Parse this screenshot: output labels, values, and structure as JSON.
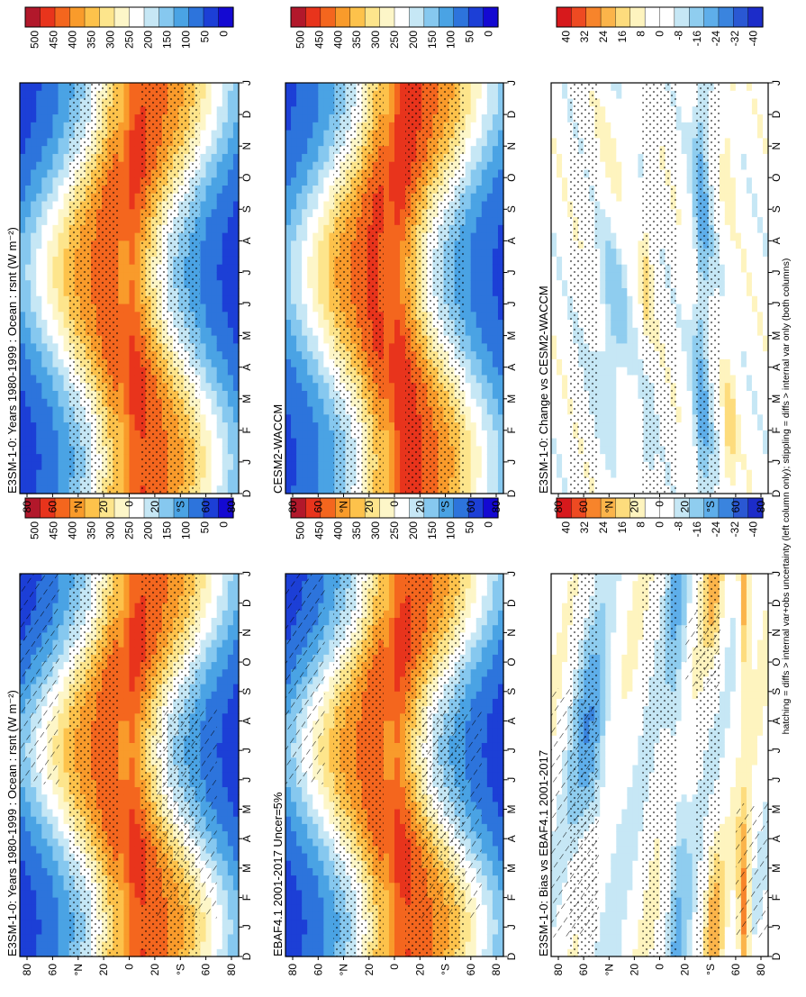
{
  "figure": {
    "footer": "hatching = diffs > internal var+obs uncertainty (left column only); stippling = diffs > internal var only (both columns)"
  },
  "chart_data": [
    {
      "id": "model-left",
      "type": "heatmap",
      "title": "E3SM-1-0: Years 1980-1999 : Ocean : rsnt (W m⁻²)",
      "x_ticks": [
        "D",
        "J",
        "F",
        "M",
        "A",
        "M",
        "J",
        "J",
        "A",
        "S",
        "O",
        "N",
        "D",
        "J"
      ],
      "y_ticks": [
        "80",
        "60",
        "°N",
        "20",
        "0",
        "20",
        "°S",
        "60",
        "80"
      ],
      "colorbar": [
        "500",
        "450",
        "400",
        "350",
        "300",
        "250",
        "200",
        "150",
        "100",
        "50",
        "0"
      ],
      "zlim": [
        0,
        500
      ],
      "hatching": true,
      "stippling": true
    },
    {
      "id": "model-right",
      "type": "heatmap",
      "title": "E3SM-1-0: Years 1980-1999 : Ocean : rsnt (W m⁻²)",
      "x_ticks": [
        "D",
        "J",
        "F",
        "M",
        "A",
        "M",
        "J",
        "J",
        "A",
        "S",
        "O",
        "N",
        "D",
        "J"
      ],
      "y_ticks": [
        "80",
        "60",
        "°N",
        "20",
        "0",
        "20",
        "°S",
        "60",
        "80"
      ],
      "colorbar": [
        "500",
        "450",
        "400",
        "350",
        "300",
        "250",
        "200",
        "150",
        "100",
        "50",
        "0"
      ],
      "zlim": [
        0,
        500
      ],
      "hatching": false,
      "stippling": true
    },
    {
      "id": "obs",
      "type": "heatmap",
      "title": "EBAF4.1 2001-2017 Uncer=5%",
      "x_ticks": [
        "D",
        "J",
        "F",
        "M",
        "A",
        "M",
        "J",
        "J",
        "A",
        "S",
        "O",
        "N",
        "D",
        "J"
      ],
      "y_ticks": [
        "80",
        "60",
        "°N",
        "20",
        "0",
        "20",
        "°S",
        "60",
        "80"
      ],
      "colorbar": [
        "500",
        "450",
        "400",
        "350",
        "300",
        "250",
        "200",
        "150",
        "100",
        "50",
        "0"
      ],
      "zlim": [
        0,
        500
      ],
      "hatching": true,
      "stippling": true
    },
    {
      "id": "cesm",
      "type": "heatmap",
      "title": "CESM2-WACCM",
      "x_ticks": [
        "D",
        "J",
        "F",
        "M",
        "A",
        "M",
        "J",
        "J",
        "A",
        "S",
        "O",
        "N",
        "D",
        "J"
      ],
      "y_ticks": [
        "80",
        "60",
        "°N",
        "20",
        "0",
        "20",
        "°S",
        "60",
        "80"
      ],
      "colorbar": [
        "500",
        "450",
        "400",
        "350",
        "300",
        "250",
        "200",
        "150",
        "100",
        "50",
        "0"
      ],
      "zlim": [
        0,
        500
      ],
      "hatching": false,
      "stippling": true
    },
    {
      "id": "bias",
      "type": "heatmap",
      "title": "E3SM-1-0: Bias vs EBAF4.1 2001-2017",
      "x_ticks": [
        "D",
        "J",
        "F",
        "M",
        "A",
        "M",
        "J",
        "J",
        "A",
        "S",
        "O",
        "N",
        "D",
        "J"
      ],
      "y_ticks": [
        "80",
        "60",
        "°N",
        "20",
        "0",
        "20",
        "°S",
        "60",
        "80"
      ],
      "colorbar": [
        "40",
        "32",
        "24",
        "16",
        "8",
        "0",
        "-8",
        "-16",
        "-24",
        "-32",
        "-40"
      ],
      "zlim": [
        -40,
        40
      ],
      "hatching": true,
      "stippling": true
    },
    {
      "id": "change",
      "type": "heatmap",
      "title": "E3SM-1-0: Change vs CESM2-WACCM",
      "x_ticks": [
        "D",
        "J",
        "F",
        "M",
        "A",
        "M",
        "J",
        "J",
        "A",
        "S",
        "O",
        "N",
        "D",
        "J"
      ],
      "y_ticks": [
        "80",
        "60",
        "°N",
        "20",
        "0",
        "20",
        "°S",
        "60",
        "80"
      ],
      "colorbar": [
        "40",
        "32",
        "24",
        "16",
        "8",
        "0",
        "-8",
        "-16",
        "-24",
        "-32",
        "-40"
      ],
      "zlim": [
        -40,
        40
      ],
      "hatching": false,
      "stippling": true
    }
  ],
  "colors": {
    "abs_scale": [
      "#b2182b",
      "#e8341c",
      "#f4661e",
      "#f99b2b",
      "#fdc24b",
      "#fde58c",
      "#fdf6c8",
      "#ffffff",
      "#c6e7f5",
      "#86c8ef",
      "#4aa3e4",
      "#2d74dc",
      "#1c3fd6",
      "#1409d2"
    ],
    "diff_scale": [
      "#d7191c",
      "#ee4a22",
      "#f7842b",
      "#fbb44a",
      "#fddc7d",
      "#fef4bf",
      "#ffffff",
      "#ffffff",
      "#c6e7f5",
      "#8fcdef",
      "#5eaeea",
      "#3a84de",
      "#2a58d3",
      "#1c2cc9"
    ]
  }
}
